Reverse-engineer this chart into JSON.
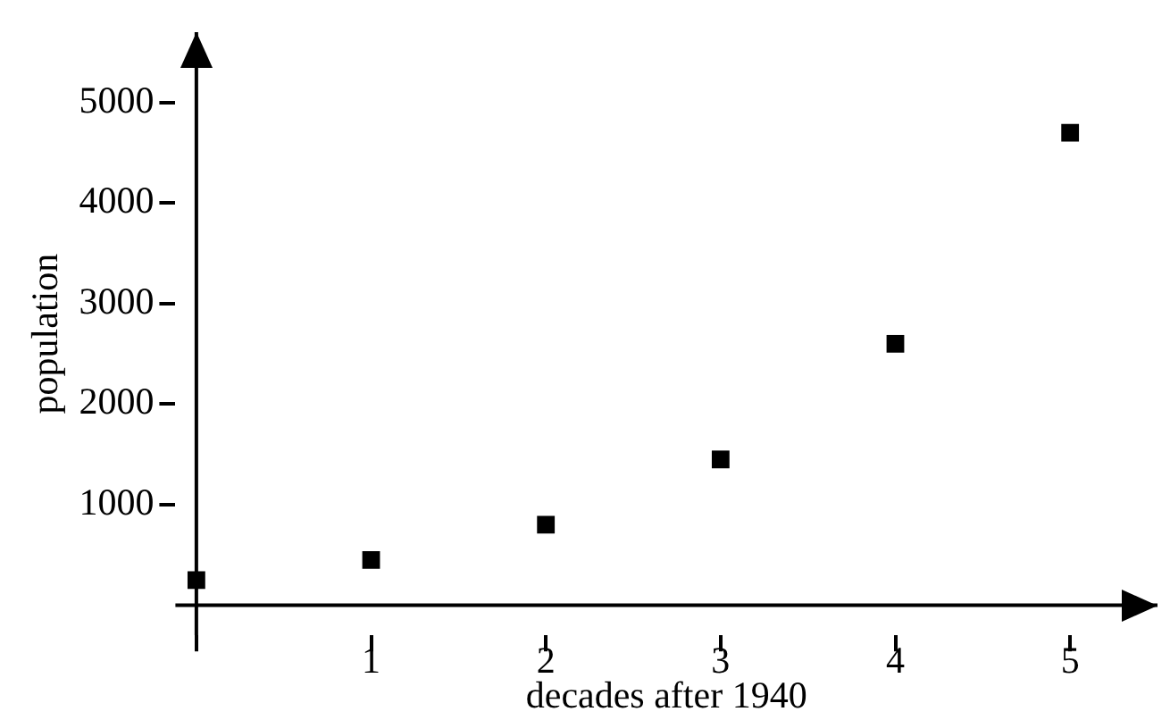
{
  "chart_data": {
    "type": "scatter",
    "xlabel": "decades after 1940",
    "ylabel": "population",
    "x": [
      0,
      1,
      2,
      3,
      4,
      5
    ],
    "values": [
      250,
      450,
      800,
      1450,
      2600,
      4700
    ],
    "color": "#000000",
    "marker": "square",
    "xlim": [
      -0.12,
      5.5
    ],
    "ylim": [
      -300,
      5700
    ],
    "xticks": [
      {
        "value": 0,
        "label": null
      },
      1,
      2,
      3,
      4,
      5
    ],
    "yticks": [
      1000,
      2000,
      3000,
      4000,
      5000
    ]
  }
}
